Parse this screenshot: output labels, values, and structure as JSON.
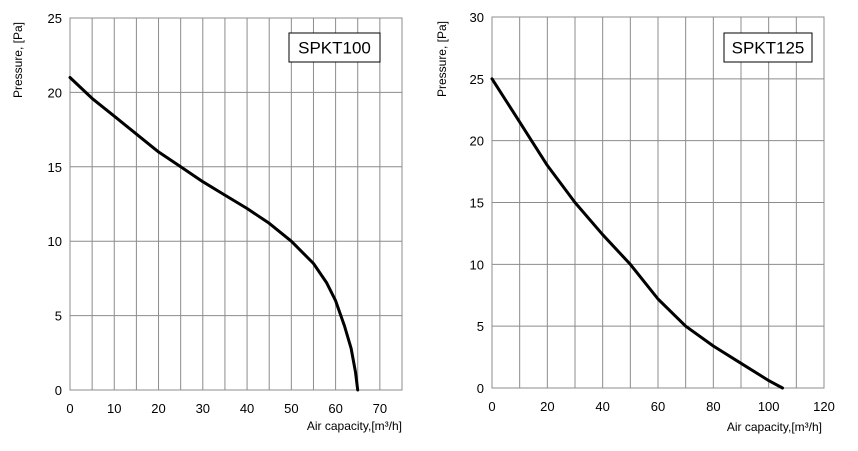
{
  "chart_data": [
    {
      "type": "line",
      "title": "SPKT100",
      "xlabel": "Air capacity,[m³/h]",
      "ylabel": "Pressure, [Pa]",
      "xlim": [
        0,
        75
      ],
      "ylim": [
        0,
        25
      ],
      "x_ticks": [
        0,
        10,
        20,
        30,
        40,
        50,
        60,
        70
      ],
      "y_ticks": [
        0,
        5,
        10,
        15,
        20,
        25
      ],
      "x_grid_step": 5,
      "y_grid_step": 5,
      "grid": true,
      "legend": "none",
      "line_color": "#000000",
      "series": [
        {
          "x": [
            0,
            5,
            10,
            15,
            20,
            25,
            30,
            35,
            40,
            45,
            50,
            55,
            58,
            60,
            62,
            63.5,
            64.5,
            65
          ],
          "y": [
            21,
            19.6,
            18.4,
            17.2,
            16,
            15,
            14,
            13.1,
            12.2,
            11.2,
            10,
            8.5,
            7.2,
            6,
            4.3,
            2.8,
            1.2,
            0
          ]
        }
      ]
    },
    {
      "type": "line",
      "title": "SPKT125",
      "xlabel": "Air capacity,[m³/h]",
      "ylabel": "Pressure, [Pa]",
      "xlim": [
        0,
        120
      ],
      "ylim": [
        0,
        30
      ],
      "x_ticks": [
        0,
        20,
        40,
        60,
        80,
        100,
        120
      ],
      "y_ticks": [
        0,
        5,
        10,
        15,
        20,
        25,
        30
      ],
      "x_grid_step": 10,
      "y_grid_step": 5,
      "grid": true,
      "legend": "none",
      "line_color": "#000000",
      "series": [
        {
          "x": [
            0,
            10,
            20,
            30,
            40,
            50,
            60,
            70,
            80,
            90,
            100,
            105
          ],
          "y": [
            25,
            21.5,
            18,
            15,
            12.4,
            10,
            7.2,
            5,
            3.4,
            2,
            0.6,
            0
          ]
        }
      ]
    }
  ]
}
